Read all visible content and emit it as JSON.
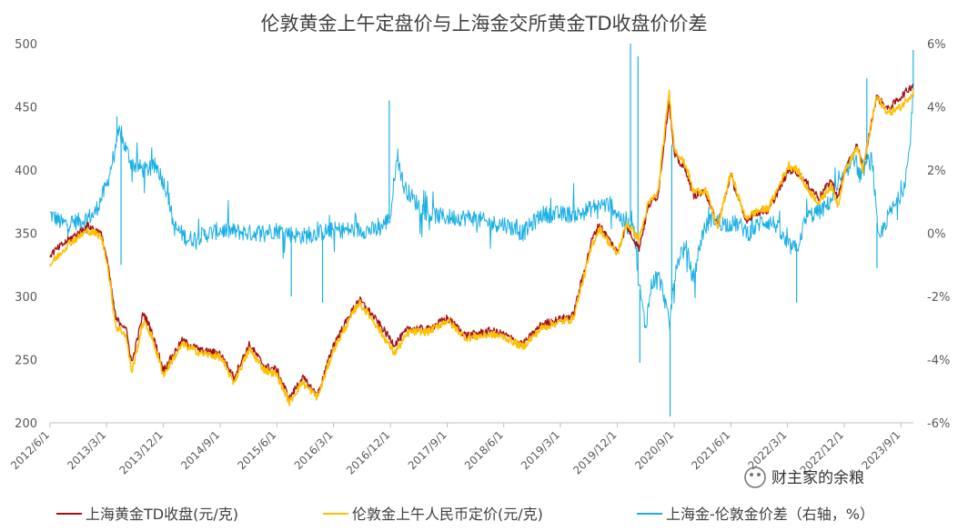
{
  "chart_data": {
    "type": "line",
    "title": "伦敦黄金上午定盘价与上海金交所黄金TD收盘价价差",
    "x_ticks": [
      "2012/6/1",
      "2013/3/1",
      "2013/12/1",
      "2014/9/1",
      "2015/6/1",
      "2016/3/1",
      "2016/12/1",
      "2017/9/1",
      "2018/6/1",
      "2019/3/1",
      "2019/12/1",
      "2020/9/1",
      "2021/6/1",
      "2022/3/1",
      "2022/12/1",
      "2023/9/1"
    ],
    "x_range": [
      "2012/6/1",
      "2023/10/31"
    ],
    "y_left": {
      "range": [
        200,
        500
      ],
      "ticks": [
        "200",
        "250",
        "300",
        "350",
        "400",
        "450",
        "500"
      ]
    },
    "y_right": {
      "range": [
        -6,
        6
      ],
      "ticks": [
        "-6%",
        "-4%",
        "-2%",
        "0%",
        "2%",
        "4%",
        "6%"
      ]
    },
    "gridlines": false,
    "legend_position": "bottom",
    "series": [
      {
        "name": "上海黄金TD收盘(元/克)",
        "axis": "left",
        "color": "#A50F15",
        "points": [
          [
            "2012/6/1",
            333
          ],
          [
            "2012/9/1",
            345
          ],
          [
            "2012/12/1",
            356
          ],
          [
            "2013/2/1",
            350
          ],
          [
            "2013/3/1",
            332
          ],
          [
            "2013/4/15",
            282
          ],
          [
            "2013/6/1",
            276
          ],
          [
            "2013/7/1",
            247
          ],
          [
            "2013/8/25",
            287
          ],
          [
            "2013/10/1",
            274
          ],
          [
            "2013/12/1",
            242
          ],
          [
            "2014/3/1",
            265
          ],
          [
            "2014/6/1",
            257
          ],
          [
            "2014/9/1",
            255
          ],
          [
            "2014/11/5",
            236
          ],
          [
            "2015/1/20",
            262
          ],
          [
            "2015/4/1",
            245
          ],
          [
            "2015/6/1",
            242
          ],
          [
            "2015/8/1",
            219
          ],
          [
            "2015/10/1",
            236
          ],
          [
            "2015/12/15",
            222
          ],
          [
            "2016/3/1",
            262
          ],
          [
            "2016/7/1",
            298
          ],
          [
            "2016/9/1",
            286
          ],
          [
            "2016/12/20",
            262
          ],
          [
            "2017/3/1",
            275
          ],
          [
            "2017/6/1",
            274
          ],
          [
            "2017/9/1",
            283
          ],
          [
            "2017/12/1",
            269
          ],
          [
            "2018/4/1",
            273
          ],
          [
            "2018/6/1",
            270
          ],
          [
            "2018/9/1",
            262
          ],
          [
            "2018/12/1",
            278
          ],
          [
            "2019/3/1",
            282
          ],
          [
            "2019/5/1",
            285
          ],
          [
            "2019/8/1",
            345
          ],
          [
            "2019/9/5",
            357
          ],
          [
            "2019/12/1",
            335
          ],
          [
            "2020/1/15",
            356
          ],
          [
            "2020/3/15",
            338
          ],
          [
            "2020/5/1",
            372
          ],
          [
            "2020/6/15",
            380
          ],
          [
            "2020/8/7",
            455
          ],
          [
            "2020/9/1",
            412
          ],
          [
            "2020/11/1",
            398
          ],
          [
            "2020/12/1",
            380
          ],
          [
            "2021/2/1",
            382
          ],
          [
            "2021/3/30",
            356
          ],
          [
            "2021/6/1",
            396
          ],
          [
            "2021/8/10",
            360
          ],
          [
            "2021/10/1",
            366
          ],
          [
            "2021/12/1",
            368
          ],
          [
            "2022/3/8",
            400
          ],
          [
            "2022/4/20",
            398
          ],
          [
            "2022/6/1",
            390
          ],
          [
            "2022/8/1",
            378
          ],
          [
            "2022/9/28",
            392
          ],
          [
            "2022/11/1",
            378
          ],
          [
            "2022/12/1",
            398
          ],
          [
            "2023/2/1",
            420
          ],
          [
            "2023/3/1",
            400
          ],
          [
            "2023/5/5",
            458
          ],
          [
            "2023/7/1",
            448
          ],
          [
            "2023/9/1",
            458
          ],
          [
            "2023/10/31",
            468
          ]
        ]
      },
      {
        "name": "伦敦金上午人民币定价(元/克)",
        "axis": "left",
        "color": "#FFC000",
        "points": [
          [
            "2012/6/1",
            325
          ],
          [
            "2012/9/1",
            342
          ],
          [
            "2012/12/1",
            352
          ],
          [
            "2013/2/1",
            348
          ],
          [
            "2013/3/1",
            330
          ],
          [
            "2013/4/15",
            276
          ],
          [
            "2013/6/1",
            270
          ],
          [
            "2013/7/1",
            240
          ],
          [
            "2013/8/25",
            280
          ],
          [
            "2013/10/1",
            270
          ],
          [
            "2013/12/1",
            238
          ],
          [
            "2014/3/1",
            262
          ],
          [
            "2014/6/1",
            255
          ],
          [
            "2014/9/1",
            252
          ],
          [
            "2014/11/5",
            232
          ],
          [
            "2015/1/20",
            258
          ],
          [
            "2015/4/1",
            242
          ],
          [
            "2015/6/1",
            238
          ],
          [
            "2015/8/1",
            216
          ],
          [
            "2015/10/1",
            232
          ],
          [
            "2015/12/15",
            220
          ],
          [
            "2016/3/1",
            258
          ],
          [
            "2016/7/1",
            295
          ],
          [
            "2016/9/1",
            283
          ],
          [
            "2016/12/20",
            255
          ],
          [
            "2017/3/1",
            272
          ],
          [
            "2017/6/1",
            272
          ],
          [
            "2017/9/1",
            281
          ],
          [
            "2017/12/1",
            267
          ],
          [
            "2018/4/1",
            270
          ],
          [
            "2018/6/1",
            268
          ],
          [
            "2018/9/1",
            260
          ],
          [
            "2018/12/1",
            275
          ],
          [
            "2019/3/1",
            280
          ],
          [
            "2019/5/1",
            282
          ],
          [
            "2019/8/1",
            340
          ],
          [
            "2019/9/5",
            354
          ],
          [
            "2019/12/1",
            333
          ],
          [
            "2020/1/15",
            358
          ],
          [
            "2020/3/15",
            345
          ],
          [
            "2020/5/1",
            374
          ],
          [
            "2020/6/15",
            382
          ],
          [
            "2020/8/7",
            462
          ],
          [
            "2020/9/1",
            418
          ],
          [
            "2020/11/1",
            402
          ],
          [
            "2020/12/1",
            383
          ],
          [
            "2021/2/1",
            384
          ],
          [
            "2021/3/30",
            354
          ],
          [
            "2021/6/1",
            398
          ],
          [
            "2021/8/10",
            362
          ],
          [
            "2021/10/1",
            367
          ],
          [
            "2021/12/1",
            370
          ],
          [
            "2022/3/8",
            404
          ],
          [
            "2022/4/20",
            400
          ],
          [
            "2022/6/1",
            386
          ],
          [
            "2022/8/1",
            374
          ],
          [
            "2022/9/28",
            388
          ],
          [
            "2022/11/1",
            372
          ],
          [
            "2022/12/1",
            398
          ],
          [
            "2023/2/1",
            418
          ],
          [
            "2023/3/1",
            400
          ],
          [
            "2023/5/5",
            458
          ],
          [
            "2023/7/1",
            445
          ],
          [
            "2023/9/1",
            450
          ],
          [
            "2023/10/31",
            462
          ]
        ]
      },
      {
        "name": "上海金-伦敦金价差（右轴，%）",
        "axis": "right",
        "color": "#1AAFE6",
        "points": [
          [
            "2012/6/1",
            0.6
          ],
          [
            "2012/8/1",
            0.3
          ],
          [
            "2012/11/1",
            0.4
          ],
          [
            "2013/1/1",
            0.6
          ],
          [
            "2013/3/1",
            1.5
          ],
          [
            "2013/5/1",
            3.2
          ],
          [
            "2013/7/1",
            2.2
          ],
          [
            "2013/9/1",
            2.0
          ],
          [
            "2013/11/1",
            2.1
          ],
          [
            "2013/12/20",
            1.3
          ],
          [
            "2014/1/20",
            0.2
          ],
          [
            "2014/4/1",
            -0.2
          ],
          [
            "2014/9/1",
            0.1
          ],
          [
            "2015/2/1",
            0
          ],
          [
            "2015/6/1",
            0.1
          ],
          [
            "2015/10/1",
            -0.1
          ],
          [
            "2016/3/1",
            0.1
          ],
          [
            "2016/10/1",
            0.1
          ],
          [
            "2016/12/1",
            0.5
          ],
          [
            "2017/1/1",
            2.6
          ],
          [
            "2017/2/1",
            1.5
          ],
          [
            "2017/4/1",
            1.0
          ],
          [
            "2017/6/1",
            0.6
          ],
          [
            "2017/9/1",
            0.5
          ],
          [
            "2018/1/1",
            0.5
          ],
          [
            "2018/4/1",
            0.3
          ],
          [
            "2018/6/1",
            0.3
          ],
          [
            "2018/9/1",
            0
          ],
          [
            "2018/12/1",
            0.6
          ],
          [
            "2019/3/1",
            0.6
          ],
          [
            "2019/6/1",
            0.6
          ],
          [
            "2019/9/1",
            0.9
          ],
          [
            "2019/11/1",
            0.9
          ],
          [
            "2019/12/15",
            0.5
          ],
          [
            "2020/1/15",
            0.2
          ],
          [
            "2020/2/15",
            0.5
          ],
          [
            "2020/3/15",
            -1.6
          ],
          [
            "2020/4/15",
            -3.0
          ],
          [
            "2020/5/15",
            -1.6
          ],
          [
            "2020/6/15",
            -1.3
          ],
          [
            "2020/7/15",
            -2.0
          ],
          [
            "2020/8/10",
            -3.0
          ],
          [
            "2020/8/25",
            -1.7
          ],
          [
            "2020/10/1",
            -0.6
          ],
          [
            "2020/11/1",
            -0.5
          ],
          [
            "2020/12/1",
            -1.5
          ],
          [
            "2021/1/15",
            0
          ],
          [
            "2021/3/1",
            0.5
          ],
          [
            "2021/5/1",
            0.3
          ],
          [
            "2021/7/1",
            0.3
          ],
          [
            "2021/9/1",
            0
          ],
          [
            "2021/11/1",
            0.4
          ],
          [
            "2022/1/1",
            0.3
          ],
          [
            "2022/3/1",
            -0.4
          ],
          [
            "2022/4/15",
            -0.5
          ],
          [
            "2022/6/1",
            0.5
          ],
          [
            "2022/9/1",
            0.8
          ],
          [
            "2022/11/1",
            1.4
          ],
          [
            "2022/12/15",
            2.0
          ],
          [
            "2023/1/15",
            2.5
          ],
          [
            "2023/2/15",
            1.8
          ],
          [
            "2023/3/15",
            2.2
          ],
          [
            "2023/4/15",
            2.4
          ],
          [
            "2023/5/15",
            -0.3
          ],
          [
            "2023/6/15",
            0.3
          ],
          [
            "2023/7/15",
            0.7
          ],
          [
            "2023/8/15",
            1.0
          ],
          [
            "2023/9/15",
            1.5
          ],
          [
            "2023/10/10",
            2.5
          ],
          [
            "2023/10/31",
            4.4
          ]
        ],
        "spikes": [
          [
            "2013/4/20",
            3.7
          ],
          [
            "2013/5/10",
            -1.0
          ],
          [
            "2015/8/10",
            -2.0
          ],
          [
            "2016/1/8",
            -2.2
          ],
          [
            "2016/11/25",
            4.2
          ],
          [
            "2020/2/3",
            6.0
          ],
          [
            "2020/3/10",
            5.6
          ],
          [
            "2020/3/19",
            -4.1
          ],
          [
            "2020/8/12",
            -5.8
          ],
          [
            "2020/8/20",
            2.8
          ],
          [
            "2022/4/15",
            -2.2
          ],
          [
            "2023/5/8",
            -1.1
          ],
          [
            "2023/3/20",
            4.9
          ],
          [
            "2023/10/30",
            5.8
          ]
        ]
      }
    ]
  },
  "watermark": {
    "text": "财主家的余粮"
  }
}
